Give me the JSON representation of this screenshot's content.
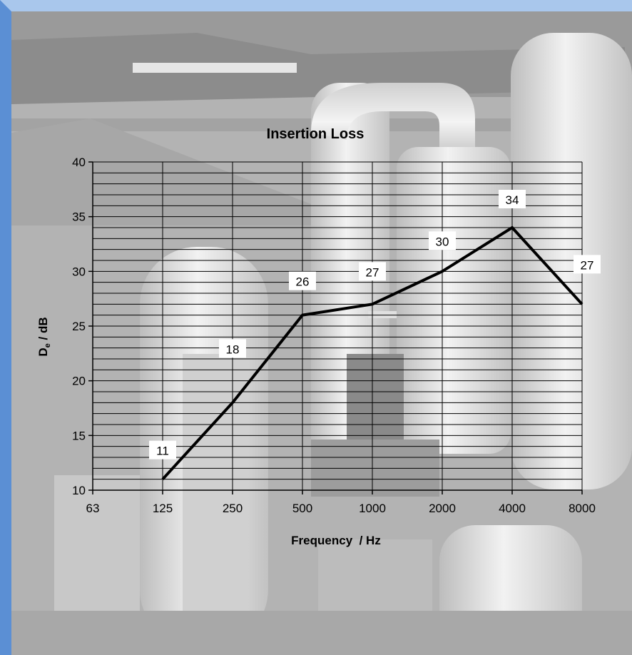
{
  "chart_data": {
    "type": "line",
    "title": "Insertion Loss",
    "xlabel": "Frequency  / Hz",
    "ylabel_main": "D",
    "ylabel_sub": "e",
    "ylabel_rest": " / dB",
    "x_ticks": [
      "63",
      "125",
      "250",
      "500",
      "1000",
      "2000",
      "4000",
      "8000"
    ],
    "y_ticks": [
      "10",
      "15",
      "20",
      "25",
      "30",
      "35",
      "40"
    ],
    "ylim": [
      10,
      40
    ],
    "x_scale": "log2 (octave bands)",
    "grid": true,
    "x": [
      125,
      250,
      500,
      1000,
      2000,
      4000,
      8000
    ],
    "y": [
      11,
      18,
      26,
      27,
      30,
      34,
      27
    ],
    "data_labels": [
      "11",
      "18",
      "26",
      "27",
      "30",
      "34",
      "27"
    ],
    "line_color": "#000000",
    "background": "photograph of insulated pipework (grayscale)"
  },
  "colors": {
    "frame_left": "#5b8fd4",
    "frame_top": "#a9c7ec",
    "photo_base": "#b9b9b9"
  }
}
